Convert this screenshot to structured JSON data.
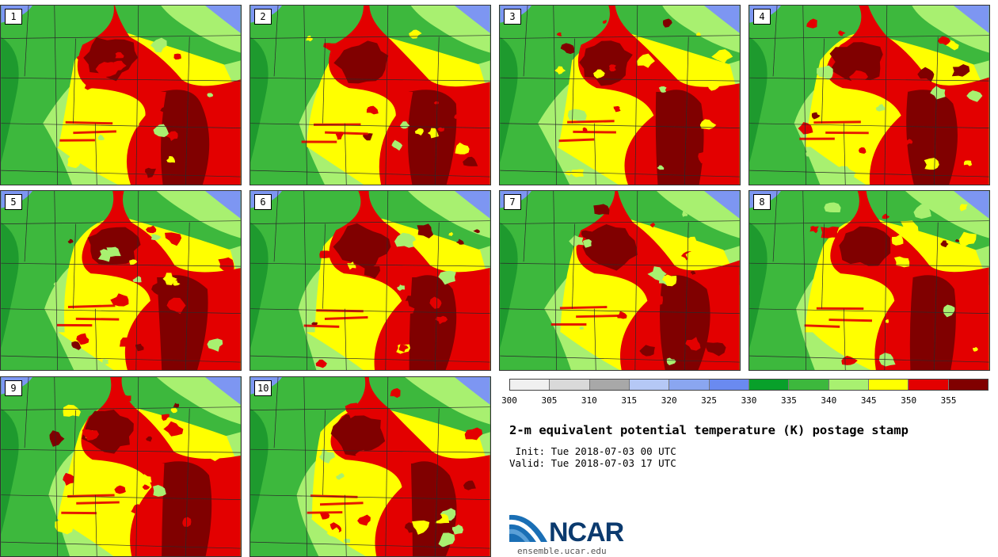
{
  "panels": [
    {
      "label": "1"
    },
    {
      "label": "2"
    },
    {
      "label": "3"
    },
    {
      "label": "4"
    },
    {
      "label": "5"
    },
    {
      "label": "6"
    },
    {
      "label": "7"
    },
    {
      "label": "8"
    },
    {
      "label": "9"
    },
    {
      "label": "10"
    }
  ],
  "colorbar": {
    "colors": [
      "#f0f0f0",
      "#d9d9d9",
      "#a8a8a8",
      "#b5c8f5",
      "#8aa6f0",
      "#6a8af0",
      "#08a02a",
      "#3db83d",
      "#a8f070",
      "#ffff00",
      "#e30000",
      "#800000"
    ],
    "ticks": [
      "300",
      "305",
      "310",
      "315",
      "320",
      "325",
      "330",
      "335",
      "340",
      "345",
      "350",
      "355"
    ]
  },
  "title": "2-m equivalent potential temperature (K) postage stamp",
  "init": " Init: Tue 2018-07-03 00 UTC",
  "valid": "Valid: Tue 2018-07-03 17 UTC",
  "logo": {
    "name": "NCAR",
    "url": "ensemble.ucar.edu"
  }
}
